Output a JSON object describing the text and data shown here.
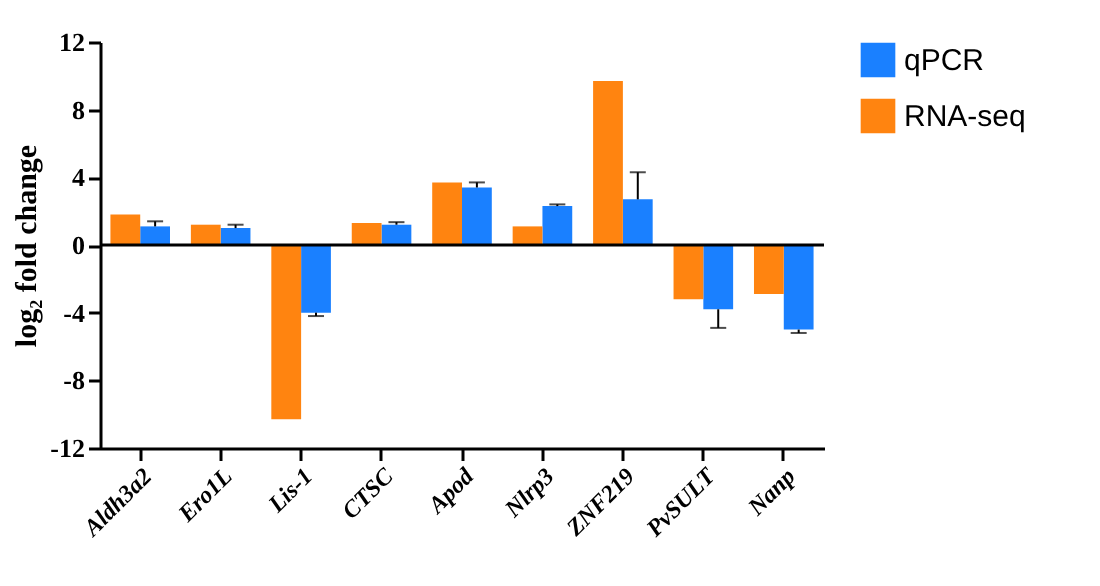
{
  "chart_data": {
    "type": "bar",
    "ylabel": "log₂ fold change",
    "categories": [
      "Aldh3a2",
      "Ero1L",
      "Lis-1",
      "CTSC",
      "Apod",
      "Nlrp3",
      "ZNF219",
      "PvSULT",
      "Nanp"
    ],
    "series": [
      {
        "name": "qPCR",
        "color": "#1a80ff",
        "values": [
          1.1,
          1.0,
          -4.0,
          1.2,
          3.4,
          2.3,
          2.7,
          -3.8,
          -5.0
        ],
        "errors": [
          [
            1.1,
            1.4
          ],
          [
            1.0,
            1.2
          ],
          [
            -4.2,
            -4.0
          ],
          [
            1.2,
            1.35
          ],
          [
            3.4,
            3.7
          ],
          [
            2.3,
            2.4
          ],
          [
            2.7,
            4.3
          ],
          [
            -4.9,
            -3.8
          ],
          [
            -5.2,
            -5.0
          ]
        ]
      },
      {
        "name": "RNA-seq",
        "color": "#ff8410",
        "values": [
          1.8,
          1.2,
          -10.3,
          1.3,
          3.7,
          1.1,
          9.7,
          -3.2,
          -2.9
        ]
      }
    ],
    "ylim": [
      -12,
      12
    ],
    "yticks": [
      -12,
      -8,
      -4,
      0,
      4,
      8,
      12
    ],
    "ref_lines": [
      {
        "axis": "y",
        "value": 0,
        "color": "#000000"
      }
    ],
    "grid": false,
    "legend": "top right"
  }
}
